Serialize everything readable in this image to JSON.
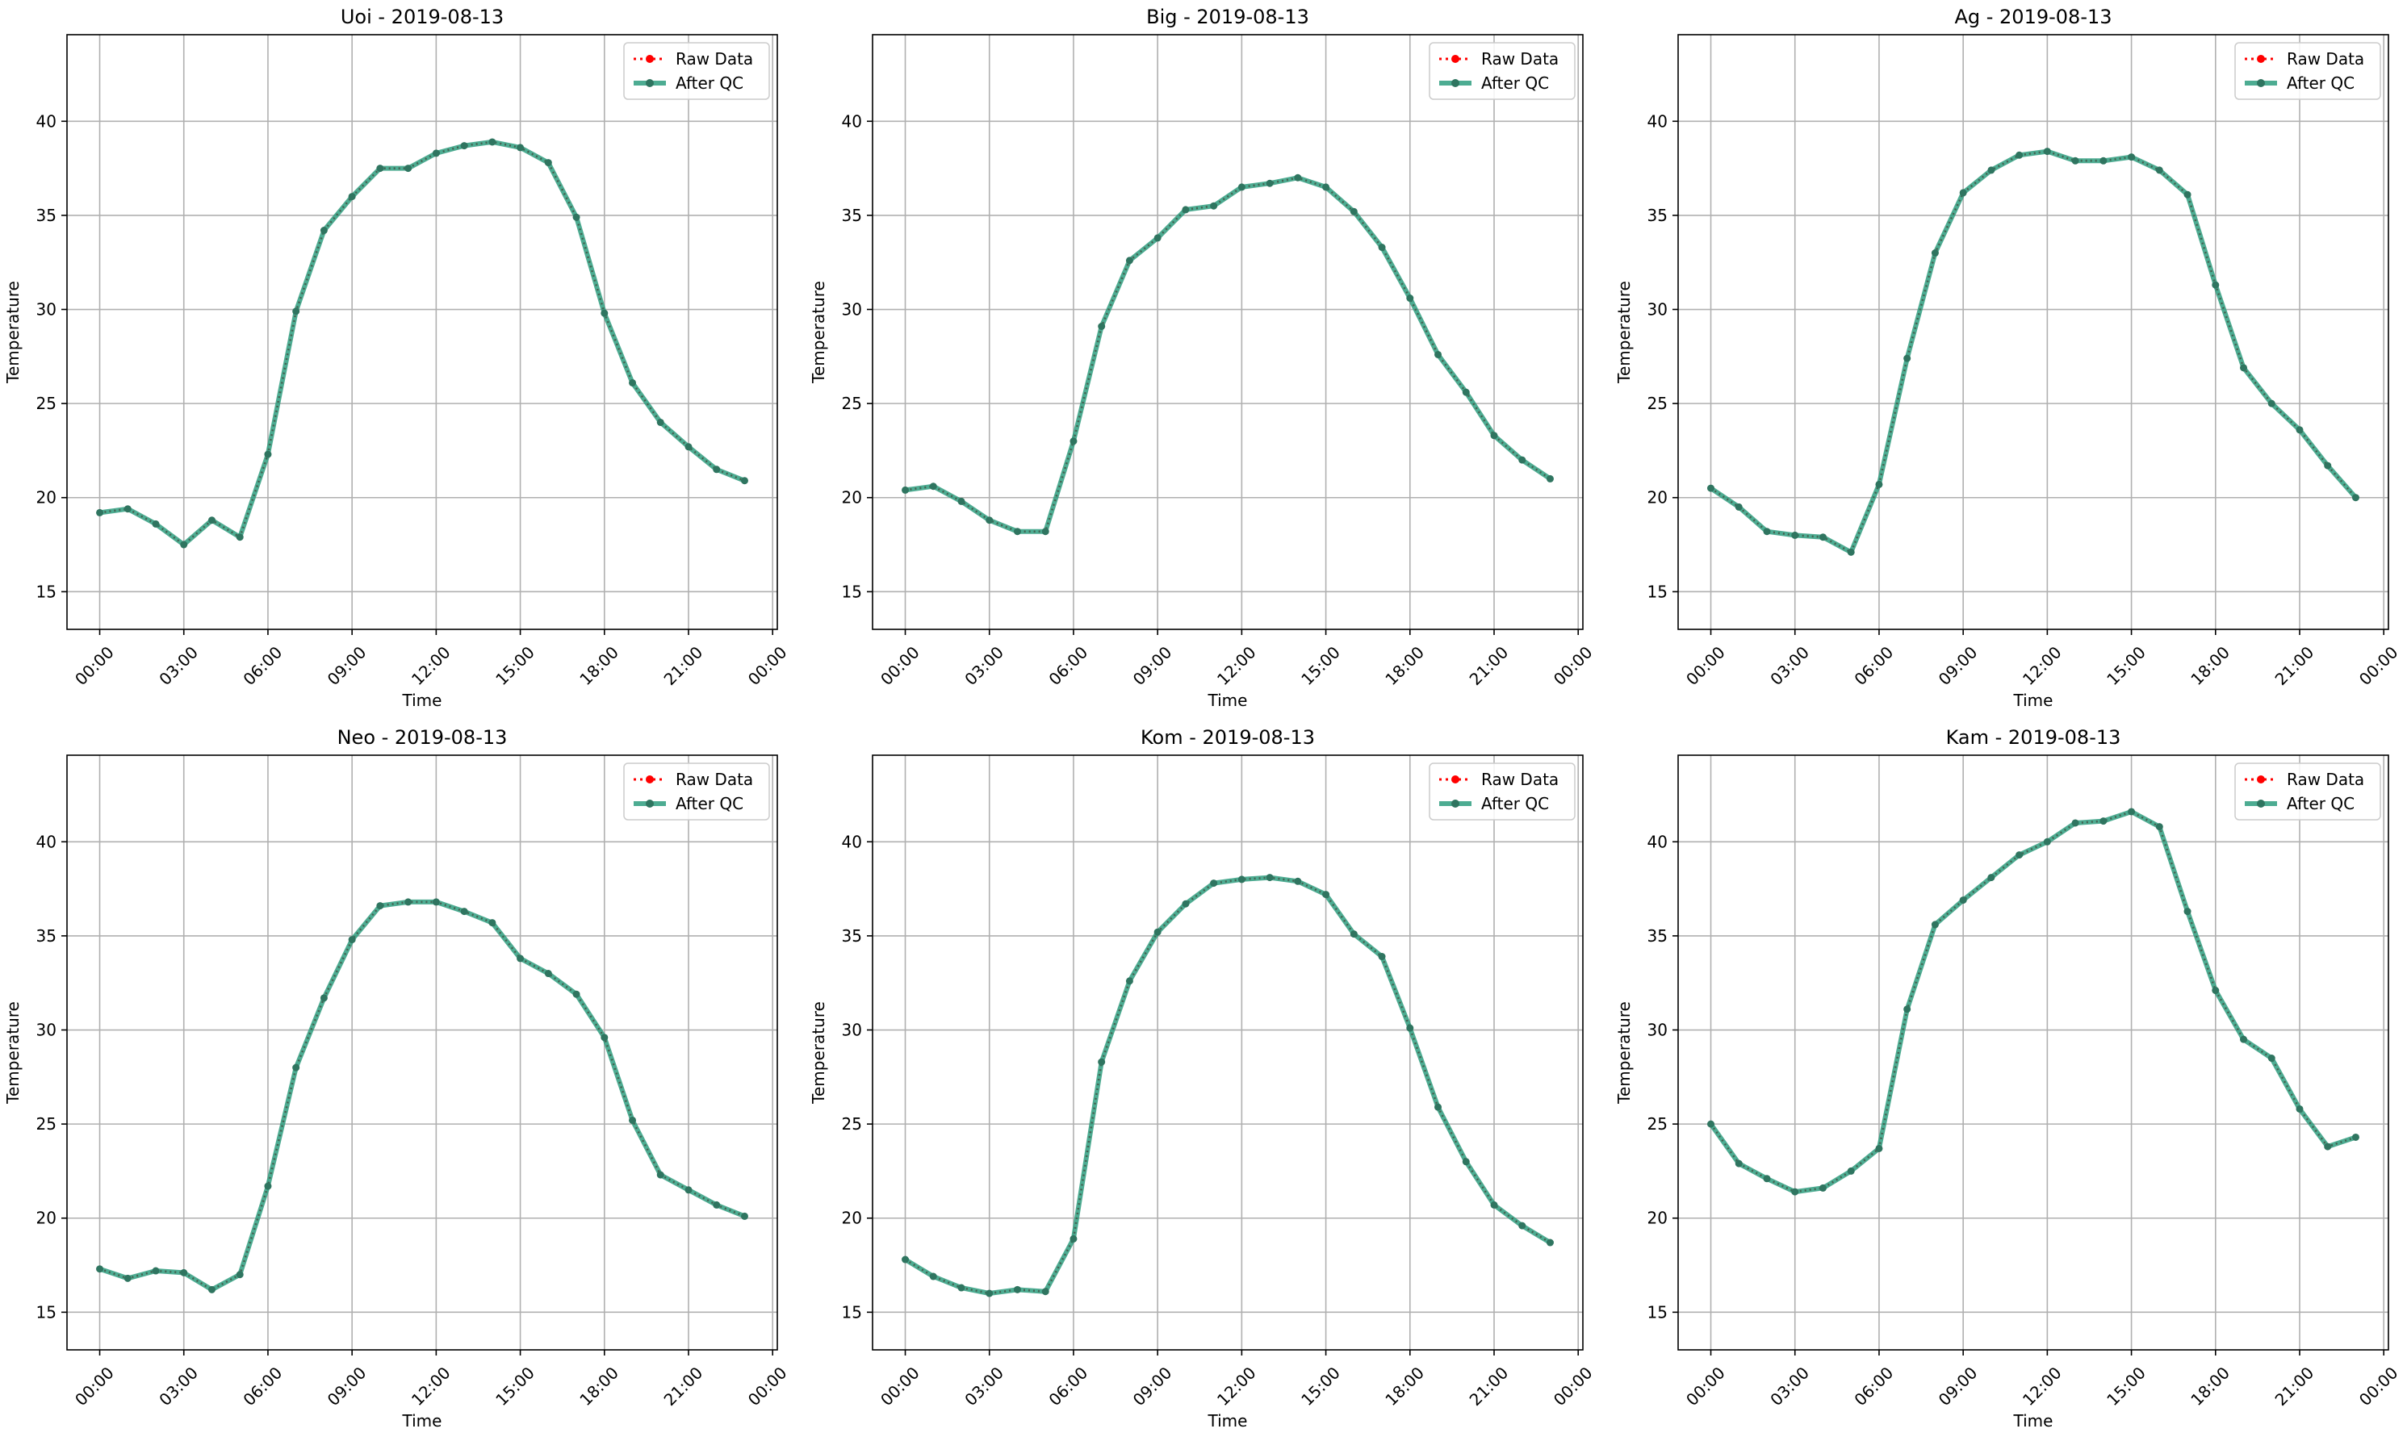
{
  "figure": {
    "rows": 2,
    "cols": 3,
    "grid": true,
    "legend_placement": "upper-right"
  },
  "colors": {
    "raw": "#ff0000",
    "qc": "#2e9e7f",
    "grid": "#b0b0b0",
    "axes": "#000000",
    "background": "#ffffff"
  },
  "chart_data": [
    {
      "type": "line",
      "title": "Uoi - 2019-08-13",
      "xlabel": "Time",
      "ylabel": "Temperature",
      "ylim": [
        13,
        44.6
      ],
      "xlim": [
        "2019-08-12 22:50",
        "2019-08-14 00:10"
      ],
      "yticks": [
        15,
        20,
        25,
        30,
        35,
        40
      ],
      "xticks": [
        "00:00",
        "03:00",
        "06:00",
        "09:00",
        "12:00",
        "15:00",
        "18:00",
        "21:00",
        "00:00"
      ],
      "x": [
        "00:00",
        "01:00",
        "02:00",
        "03:00",
        "04:00",
        "05:00",
        "06:00",
        "07:00",
        "08:00",
        "09:00",
        "10:00",
        "11:00",
        "12:00",
        "13:00",
        "14:00",
        "15:00",
        "16:00",
        "17:00",
        "18:00",
        "19:00",
        "20:00",
        "21:00",
        "22:00",
        "23:00"
      ],
      "series": [
        {
          "name": "Raw Data",
          "values": [
            19.2,
            19.4,
            18.6,
            17.5,
            18.8,
            17.9,
            22.3,
            29.9,
            34.2,
            36.0,
            37.5,
            37.5,
            38.3,
            38.7,
            38.9,
            38.6,
            37.8,
            34.9,
            29.8,
            26.1,
            24.0,
            22.7,
            21.5,
            20.9
          ]
        },
        {
          "name": "After QC",
          "values": [
            19.2,
            19.4,
            18.6,
            17.5,
            18.8,
            17.9,
            22.3,
            29.9,
            34.2,
            36.0,
            37.5,
            37.5,
            38.3,
            38.7,
            38.9,
            38.6,
            37.8,
            34.9,
            29.8,
            26.1,
            24.0,
            22.7,
            21.5,
            20.9
          ]
        }
      ]
    },
    {
      "type": "line",
      "title": "Big - 2019-08-13",
      "xlabel": "Time",
      "ylabel": "Temperature",
      "ylim": [
        13,
        44.6
      ],
      "xlim": [
        "2019-08-12 22:50",
        "2019-08-14 00:10"
      ],
      "yticks": [
        15,
        20,
        25,
        30,
        35,
        40
      ],
      "xticks": [
        "00:00",
        "03:00",
        "06:00",
        "09:00",
        "12:00",
        "15:00",
        "18:00",
        "21:00",
        "00:00"
      ],
      "x": [
        "00:00",
        "01:00",
        "02:00",
        "03:00",
        "04:00",
        "05:00",
        "06:00",
        "07:00",
        "08:00",
        "09:00",
        "10:00",
        "11:00",
        "12:00",
        "13:00",
        "14:00",
        "15:00",
        "16:00",
        "17:00",
        "18:00",
        "19:00",
        "20:00",
        "21:00",
        "22:00",
        "23:00"
      ],
      "series": [
        {
          "name": "Raw Data",
          "values": [
            20.4,
            20.6,
            19.8,
            18.8,
            18.2,
            18.2,
            23.0,
            29.1,
            32.6,
            33.8,
            35.3,
            35.5,
            36.5,
            36.7,
            37.0,
            36.5,
            35.2,
            33.3,
            30.6,
            27.6,
            25.6,
            23.3,
            22.0,
            21.0
          ]
        },
        {
          "name": "After QC",
          "values": [
            20.4,
            20.6,
            19.8,
            18.8,
            18.2,
            18.2,
            23.0,
            29.1,
            32.6,
            33.8,
            35.3,
            35.5,
            36.5,
            36.7,
            37.0,
            36.5,
            35.2,
            33.3,
            30.6,
            27.6,
            25.6,
            23.3,
            22.0,
            21.0
          ]
        }
      ]
    },
    {
      "type": "line",
      "title": "Ag - 2019-08-13",
      "xlabel": "Time",
      "ylabel": "Temperature",
      "ylim": [
        13,
        44.6
      ],
      "xlim": [
        "2019-08-12 22:50",
        "2019-08-14 00:10"
      ],
      "yticks": [
        15,
        20,
        25,
        30,
        35,
        40
      ],
      "xticks": [
        "00:00",
        "03:00",
        "06:00",
        "09:00",
        "12:00",
        "15:00",
        "18:00",
        "21:00",
        "00:00"
      ],
      "x": [
        "00:00",
        "01:00",
        "02:00",
        "03:00",
        "04:00",
        "05:00",
        "06:00",
        "07:00",
        "08:00",
        "09:00",
        "10:00",
        "11:00",
        "12:00",
        "13:00",
        "14:00",
        "15:00",
        "16:00",
        "17:00",
        "18:00",
        "19:00",
        "20:00",
        "21:00",
        "22:00",
        "23:00"
      ],
      "series": [
        {
          "name": "Raw Data",
          "values": [
            20.5,
            19.5,
            18.2,
            18.0,
            17.9,
            17.1,
            20.7,
            27.4,
            33.0,
            36.2,
            37.4,
            38.2,
            38.4,
            37.9,
            37.9,
            38.1,
            37.4,
            36.1,
            31.3,
            26.9,
            25.0,
            23.6,
            21.7,
            20.0
          ]
        },
        {
          "name": "After QC",
          "values": [
            20.5,
            19.5,
            18.2,
            18.0,
            17.9,
            17.1,
            20.7,
            27.4,
            33.0,
            36.2,
            37.4,
            38.2,
            38.4,
            37.9,
            37.9,
            38.1,
            37.4,
            36.1,
            31.3,
            26.9,
            25.0,
            23.6,
            21.7,
            20.0
          ]
        }
      ]
    },
    {
      "type": "line",
      "title": "Neo - 2019-08-13",
      "xlabel": "Time",
      "ylabel": "Temperature",
      "ylim": [
        13,
        44.6
      ],
      "xlim": [
        "2019-08-12 22:50",
        "2019-08-14 00:10"
      ],
      "yticks": [
        15,
        20,
        25,
        30,
        35,
        40
      ],
      "xticks": [
        "00:00",
        "03:00",
        "06:00",
        "09:00",
        "12:00",
        "15:00",
        "18:00",
        "21:00",
        "00:00"
      ],
      "x": [
        "00:00",
        "01:00",
        "02:00",
        "03:00",
        "04:00",
        "05:00",
        "06:00",
        "07:00",
        "08:00",
        "09:00",
        "10:00",
        "11:00",
        "12:00",
        "13:00",
        "14:00",
        "15:00",
        "16:00",
        "17:00",
        "18:00",
        "19:00",
        "20:00",
        "21:00",
        "22:00",
        "23:00"
      ],
      "series": [
        {
          "name": "Raw Data",
          "values": [
            17.3,
            16.8,
            17.2,
            17.1,
            16.2,
            17.0,
            21.7,
            28.0,
            31.7,
            34.8,
            36.6,
            36.8,
            36.8,
            36.3,
            35.7,
            33.8,
            33.0,
            31.9,
            29.6,
            25.2,
            22.3,
            21.5,
            20.7,
            20.1
          ]
        },
        {
          "name": "After QC",
          "values": [
            17.3,
            16.8,
            17.2,
            17.1,
            16.2,
            17.0,
            21.7,
            28.0,
            31.7,
            34.8,
            36.6,
            36.8,
            36.8,
            36.3,
            35.7,
            33.8,
            33.0,
            31.9,
            29.6,
            25.2,
            22.3,
            21.5,
            20.7,
            20.1
          ]
        }
      ]
    },
    {
      "type": "line",
      "title": "Kom - 2019-08-13",
      "xlabel": "Time",
      "ylabel": "Temperature",
      "ylim": [
        13,
        44.6
      ],
      "xlim": [
        "2019-08-12 22:50",
        "2019-08-14 00:10"
      ],
      "yticks": [
        15,
        20,
        25,
        30,
        35,
        40
      ],
      "xticks": [
        "00:00",
        "03:00",
        "06:00",
        "09:00",
        "12:00",
        "15:00",
        "18:00",
        "21:00",
        "00:00"
      ],
      "x": [
        "00:00",
        "01:00",
        "02:00",
        "03:00",
        "04:00",
        "05:00",
        "06:00",
        "07:00",
        "08:00",
        "09:00",
        "10:00",
        "11:00",
        "12:00",
        "13:00",
        "14:00",
        "15:00",
        "16:00",
        "17:00",
        "18:00",
        "19:00",
        "20:00",
        "21:00",
        "22:00",
        "23:00"
      ],
      "series": [
        {
          "name": "Raw Data",
          "values": [
            17.8,
            16.9,
            16.3,
            16.0,
            16.2,
            16.1,
            18.9,
            28.3,
            32.6,
            35.2,
            36.7,
            37.8,
            38.0,
            38.1,
            37.9,
            37.2,
            35.1,
            33.9,
            30.1,
            25.9,
            23.0,
            20.7,
            19.6,
            18.7
          ]
        },
        {
          "name": "After QC",
          "values": [
            17.8,
            16.9,
            16.3,
            16.0,
            16.2,
            16.1,
            18.9,
            28.3,
            32.6,
            35.2,
            36.7,
            37.8,
            38.0,
            38.1,
            37.9,
            37.2,
            35.1,
            33.9,
            30.1,
            25.9,
            23.0,
            20.7,
            19.6,
            18.7
          ]
        }
      ]
    },
    {
      "type": "line",
      "title": "Kam - 2019-08-13",
      "xlabel": "Time",
      "ylabel": "Temperature",
      "ylim": [
        13,
        44.6
      ],
      "xlim": [
        "2019-08-12 22:50",
        "2019-08-14 00:10"
      ],
      "yticks": [
        15,
        20,
        25,
        30,
        35,
        40
      ],
      "xticks": [
        "00:00",
        "03:00",
        "06:00",
        "09:00",
        "12:00",
        "15:00",
        "18:00",
        "21:00",
        "00:00"
      ],
      "x": [
        "00:00",
        "01:00",
        "02:00",
        "03:00",
        "04:00",
        "05:00",
        "06:00",
        "07:00",
        "08:00",
        "09:00",
        "10:00",
        "11:00",
        "12:00",
        "13:00",
        "14:00",
        "15:00",
        "16:00",
        "17:00",
        "18:00",
        "19:00",
        "20:00",
        "21:00",
        "22:00",
        "23:00"
      ],
      "series": [
        {
          "name": "Raw Data",
          "values": [
            25.0,
            22.9,
            22.1,
            21.4,
            21.6,
            22.5,
            23.7,
            31.1,
            35.6,
            36.9,
            38.1,
            39.3,
            40.0,
            41.0,
            41.1,
            41.6,
            40.8,
            36.3,
            32.1,
            29.5,
            28.5,
            25.8,
            23.8,
            24.3
          ]
        },
        {
          "name": "After QC",
          "values": [
            25.0,
            22.9,
            22.1,
            21.4,
            21.6,
            22.5,
            23.7,
            31.1,
            35.6,
            36.9,
            38.1,
            39.3,
            40.0,
            41.0,
            41.1,
            41.6,
            40.8,
            36.3,
            32.1,
            29.5,
            28.5,
            25.8,
            23.8,
            24.3
          ]
        }
      ]
    }
  ]
}
